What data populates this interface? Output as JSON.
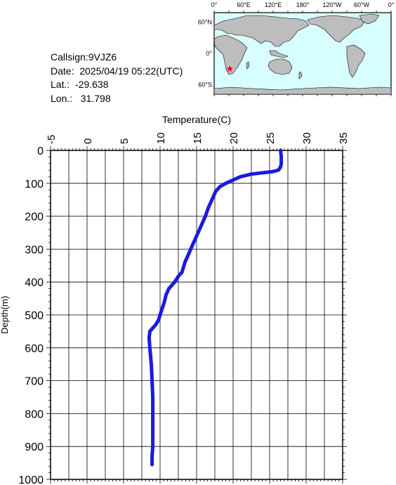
{
  "info": {
    "callsign": "Callsign:9VJZ6",
    "date": "Date:  2025/04/19 05:22(UTC)",
    "lat": "Lat.:  -29.638",
    "lon": "Lon.:   31.798"
  },
  "map": {
    "top_labels": [
      "0°",
      "60°E",
      "120°E",
      "180°",
      "120°W",
      "60°W",
      "0°"
    ],
    "left_labels": [
      "60°N",
      "0°",
      "60°S"
    ],
    "colors": {
      "ocean": "#d8ffff",
      "land": "#bdbdbd",
      "marker": "#ff0000"
    },
    "marker": {
      "lat": -29.638,
      "lon": 31.798
    }
  },
  "chart_data": {
    "type": "line",
    "xlabel": "Temperature(C)",
    "ylabel": "Depth(m)",
    "xlim": [
      -5,
      35
    ],
    "ylim": [
      1000,
      0
    ],
    "xticks": [
      -5,
      0,
      5,
      10,
      15,
      20,
      25,
      30,
      35
    ],
    "yticks": [
      0,
      100,
      200,
      300,
      400,
      500,
      600,
      700,
      800,
      900,
      1000
    ],
    "grid": true,
    "line_color": "#1a1adf",
    "series": [
      {
        "x": [
          26.5,
          26.6,
          26.6,
          26.5,
          26.2,
          25.3,
          24.0,
          22.5,
          21.0,
          20.0,
          19.0,
          18.2,
          17.6,
          17.3,
          17.0,
          16.6,
          16.2,
          15.8,
          15.2,
          14.6,
          14.0,
          13.4,
          13.0,
          12.6,
          12.3,
          12.0,
          11.2,
          10.8,
          10.6,
          10.3,
          10.0,
          9.8,
          9.4,
          9.0,
          8.6,
          8.5,
          8.6,
          8.8,
          8.9,
          9.0,
          9.0,
          9.0,
          9.0,
          8.9,
          8.9
        ],
        "y": [
          0,
          20,
          40,
          50,
          60,
          65,
          68,
          72,
          80,
          90,
          100,
          110,
          125,
          140,
          155,
          175,
          200,
          220,
          250,
          280,
          310,
          340,
          370,
          380,
          390,
          400,
          420,
          440,
          460,
          480,
          500,
          515,
          530,
          540,
          550,
          570,
          600,
          650,
          700,
          750,
          800,
          850,
          900,
          930,
          955
        ]
      }
    ]
  }
}
